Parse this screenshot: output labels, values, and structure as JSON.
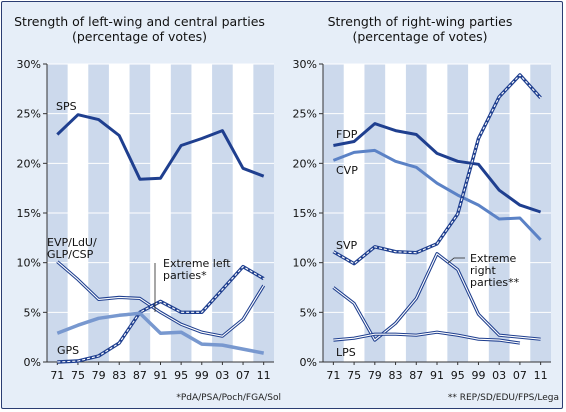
{
  "colors": {
    "background": "#e6eef8",
    "stripe": "#ccd9ec",
    "plot_bg": "#ffffff",
    "dark_blue": "#1f3f8f",
    "mid_blue": "#5b82c6",
    "light_blue": "#7898cf",
    "dash": "#ffffff",
    "axis": "#333333"
  },
  "chart_data": [
    {
      "type": "line",
      "title": "Strength of left-wing and central parties\n(percentage of votes)",
      "x": [
        "71",
        "75",
        "79",
        "83",
        "87",
        "91",
        "95",
        "99",
        "03",
        "07",
        "11"
      ],
      "ylim": [
        0,
        30
      ],
      "yticks": [
        "0%",
        "5%",
        "10%",
        "15%",
        "20%",
        "25%",
        "30%"
      ],
      "grid": true,
      "series": [
        {
          "name": "SPS",
          "label": "SPS",
          "style": "dark",
          "values": [
            22.9,
            24.9,
            24.4,
            22.8,
            18.4,
            18.5,
            21.8,
            22.5,
            23.3,
            19.5,
            18.7
          ]
        },
        {
          "name": "EVP/LdU/GLP/CSP",
          "label": "EVP/LdU/\nGLP/CSP",
          "style": "dark-outline",
          "values": [
            10.1,
            8.3,
            6.3,
            6.5,
            6.4,
            5.0,
            3.8,
            3.0,
            2.6,
            4.3,
            7.7
          ]
        },
        {
          "name": "Extreme left parties*",
          "label": "Extreme left\nparties*",
          "style": "dashed",
          "values": [
            0.0,
            0.1,
            0.6,
            1.9,
            5.0,
            6.1,
            5.0,
            5.0,
            7.3,
            9.6,
            8.4
          ]
        },
        {
          "name": "GPS",
          "label": "GPS",
          "style": "light",
          "values": [
            2.9,
            3.7,
            4.4,
            4.7,
            4.9,
            2.9,
            3.0,
            1.8,
            1.7,
            1.3,
            0.9
          ]
        }
      ],
      "footnote": "*PdA/PSA/Poch/FGA/Sol"
    },
    {
      "type": "line",
      "title": "Strength of right-wing parties\n(percentage of votes)",
      "x": [
        "71",
        "75",
        "79",
        "83",
        "87",
        "91",
        "95",
        "99",
        "03",
        "07",
        "11"
      ],
      "ylim": [
        0,
        30
      ],
      "yticks": [
        "0%",
        "5%",
        "10%",
        "15%",
        "20%",
        "25%",
        "30%"
      ],
      "grid": true,
      "series": [
        {
          "name": "FDP",
          "label": "FDP",
          "style": "dark",
          "values": [
            21.8,
            22.2,
            24.0,
            23.3,
            22.9,
            21.0,
            20.2,
            19.9,
            17.3,
            15.8,
            15.1
          ]
        },
        {
          "name": "CVP",
          "label": "CVP",
          "style": "mid",
          "values": [
            20.3,
            21.1,
            21.3,
            20.2,
            19.6,
            18.0,
            16.8,
            15.8,
            14.4,
            14.5,
            12.3
          ]
        },
        {
          "name": "SVP",
          "label": "SVP",
          "style": "dashed",
          "values": [
            11.1,
            9.9,
            11.6,
            11.1,
            11.0,
            11.9,
            14.9,
            22.5,
            26.7,
            28.9,
            26.6
          ]
        },
        {
          "name": "Extreme right parties**",
          "label": "Extreme\nright\nparties**",
          "style": "dark-outline",
          "values": [
            7.5,
            5.9,
            2.2,
            3.9,
            6.4,
            10.9,
            9.3,
            4.8,
            2.7,
            2.5,
            2.3
          ]
        },
        {
          "name": "LPS",
          "label": "LPS",
          "style": "dark-outline",
          "values": [
            2.2,
            2.4,
            2.8,
            2.8,
            2.7,
            3.0,
            2.7,
            2.3,
            2.2,
            1.9,
            null
          ]
        }
      ],
      "footnote": "** REP/SD/EDU/FPS/Lega"
    }
  ]
}
